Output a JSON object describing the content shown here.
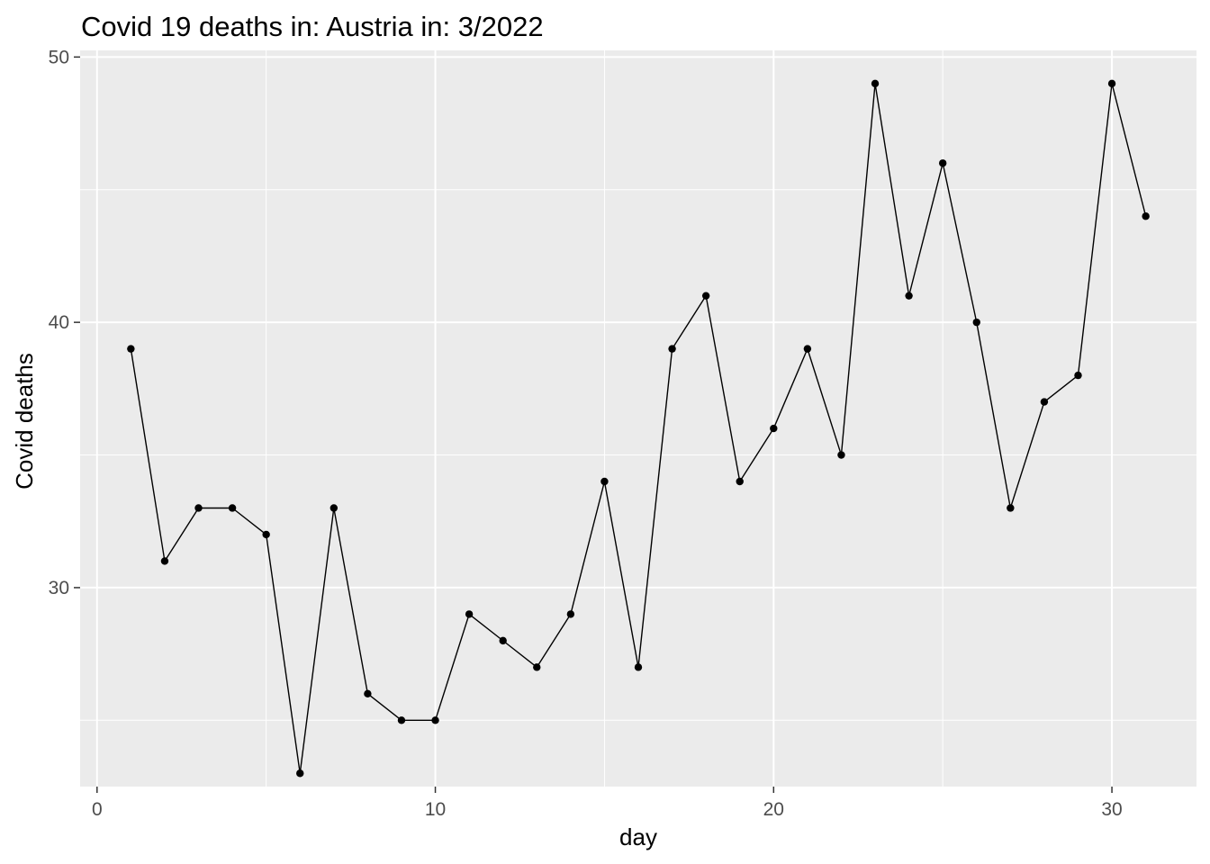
{
  "chart_data": {
    "type": "line",
    "title": "Covid 19 deaths in: Austria in: 3/2022",
    "xlabel": "day",
    "ylabel": "Covid deaths",
    "xlim": [
      -0.5,
      32.5
    ],
    "ylim": [
      22.5,
      50.25
    ],
    "x_ticks": [
      0,
      10,
      20,
      30
    ],
    "x_tick_labels": [
      "0",
      "10",
      "20",
      "30"
    ],
    "x_minor_ticks": [
      5,
      15,
      25
    ],
    "y_ticks": [
      30,
      40,
      50
    ],
    "y_tick_labels": [
      "30",
      "40",
      "50"
    ],
    "y_minor_ticks": [
      25,
      35,
      45
    ],
    "grid": true,
    "background": "#ebebeb",
    "grid_color": "#ffffff",
    "line_color": "#000000",
    "point_color": "#000000",
    "x": [
      1,
      2,
      3,
      4,
      5,
      6,
      7,
      8,
      9,
      10,
      11,
      12,
      13,
      14,
      15,
      16,
      17,
      18,
      19,
      20,
      21,
      22,
      23,
      24,
      25,
      26,
      27,
      28,
      29,
      30,
      31
    ],
    "series": [
      {
        "values": [
          39,
          31,
          33,
          33,
          32,
          23,
          33,
          26,
          25,
          25,
          29,
          28,
          27,
          29,
          34,
          27,
          39,
          41,
          34,
          36,
          39,
          35,
          49,
          41,
          46,
          40,
          33,
          37,
          38,
          49,
          44
        ]
      }
    ]
  }
}
